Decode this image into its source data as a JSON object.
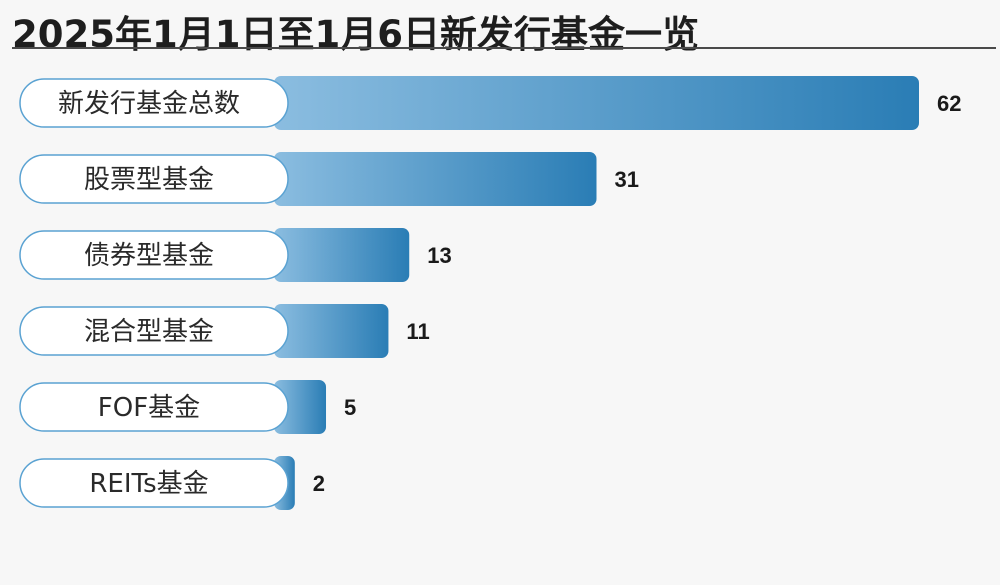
{
  "title": "2025年1月1日至1月6日新发行基金一览",
  "colors": {
    "bar_start": "#8bbde0",
    "bar_end": "#2a7db5",
    "pill_border": "#5aa2d2",
    "pill_fill": "#ffffff"
  },
  "chart_data": {
    "type": "bar",
    "orientation": "horizontal",
    "title": "2025年1月1日至1月6日新发行基金一览",
    "categories": [
      "新发行基金总数",
      "股票型基金",
      "债券型基金",
      "混合型基金",
      "FOF基金",
      "REITs基金"
    ],
    "values": [
      62,
      31,
      13,
      11,
      5,
      2
    ],
    "xlim": [
      0,
      62
    ],
    "grid": false,
    "legend": "none"
  }
}
